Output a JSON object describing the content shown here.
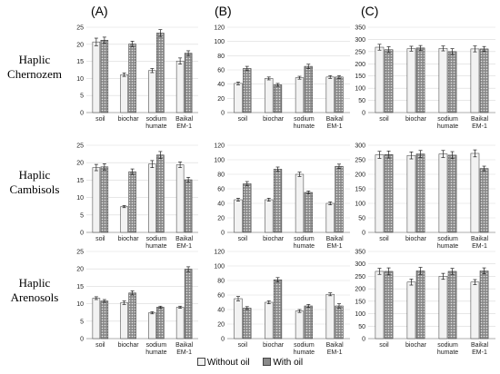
{
  "column_labels": [
    "(A)",
    "(B)",
    "(C)"
  ],
  "row_labels": [
    [
      "Haplic",
      "Chernozem"
    ],
    [
      "Haplic",
      "Cambisols"
    ],
    [
      "Haplic",
      "Arenosols"
    ]
  ],
  "legend": {
    "without_oil": "Without oil",
    "with_oil": "With oil"
  },
  "colors": {
    "without_oil_fill": "#f2f2f2",
    "with_oil_fill": "#8a8a8a",
    "bar_stroke": "#333333",
    "axis": "#999999"
  },
  "chart_data": [
    {
      "type": "bar",
      "row": 0,
      "col": 0,
      "title": "",
      "ylim": [
        0,
        25
      ],
      "yticks": [
        0,
        5,
        10,
        15,
        20,
        25
      ],
      "categories": [
        "soil",
        "biochar",
        "sodium humate",
        "Baikal EM-1"
      ],
      "series": [
        {
          "name": "Without oil",
          "values": [
            20.7,
            11.1,
            12.3,
            15.1
          ],
          "errors": [
            1.1,
            0.5,
            0.6,
            0.9
          ]
        },
        {
          "name": "With oil",
          "values": [
            21.2,
            20.1,
            23.3,
            17.4
          ],
          "errors": [
            0.9,
            0.8,
            1.0,
            0.7
          ]
        }
      ]
    },
    {
      "type": "bar",
      "row": 0,
      "col": 1,
      "title": "",
      "ylim": [
        0,
        120
      ],
      "yticks": [
        0,
        20,
        40,
        60,
        80,
        100,
        120
      ],
      "categories": [
        "soil",
        "biochar",
        "sodium humate",
        "Baikal EM-1"
      ],
      "series": [
        {
          "name": "Without oil",
          "values": [
            41,
            48,
            49,
            50
          ],
          "errors": [
            2,
            2,
            2,
            2
          ]
        },
        {
          "name": "With oil",
          "values": [
            62,
            39,
            65,
            50
          ],
          "errors": [
            3,
            2,
            3,
            2
          ]
        }
      ]
    },
    {
      "type": "bar",
      "row": 0,
      "col": 2,
      "title": "",
      "ylim": [
        0,
        350
      ],
      "yticks": [
        0,
        50,
        100,
        150,
        200,
        250,
        300,
        350
      ],
      "categories": [
        "soil",
        "biochar",
        "sodium humate",
        "Baikal EM-1"
      ],
      "series": [
        {
          "name": "Without oil",
          "values": [
            268,
            262,
            263,
            261
          ],
          "errors": [
            12,
            10,
            10,
            12
          ]
        },
        {
          "name": "With oil",
          "values": [
            258,
            265,
            250,
            261
          ],
          "errors": [
            12,
            10,
            12,
            10
          ]
        }
      ]
    },
    {
      "type": "bar",
      "row": 1,
      "col": 0,
      "title": "",
      "ylim": [
        0,
        25
      ],
      "yticks": [
        0,
        5,
        10,
        15,
        20,
        25
      ],
      "categories": [
        "soil",
        "biochar",
        "sodium humate",
        "Baikal EM-1"
      ],
      "series": [
        {
          "name": "Without oil",
          "values": [
            18.6,
            7.4,
            19.6,
            19.4
          ],
          "errors": [
            0.9,
            0.3,
            1.0,
            0.8
          ]
        },
        {
          "name": "With oil",
          "values": [
            18.8,
            17.4,
            22.2,
            15.1
          ],
          "errors": [
            0.9,
            0.8,
            1.0,
            0.7
          ]
        }
      ]
    },
    {
      "type": "bar",
      "row": 1,
      "col": 1,
      "title": "",
      "ylim": [
        0,
        120
      ],
      "yticks": [
        0,
        20,
        40,
        60,
        80,
        100,
        120
      ],
      "categories": [
        "soil",
        "biochar",
        "sodium humate",
        "Baikal EM-1"
      ],
      "series": [
        {
          "name": "Without oil",
          "values": [
            45,
            45,
            80,
            40
          ],
          "errors": [
            2,
            2,
            3,
            2
          ]
        },
        {
          "name": "With oil",
          "values": [
            67,
            87,
            55,
            91
          ],
          "errors": [
            3,
            3,
            2,
            3
          ]
        }
      ]
    },
    {
      "type": "bar",
      "row": 1,
      "col": 2,
      "title": "",
      "ylim": [
        0,
        300
      ],
      "yticks": [
        0,
        50,
        100,
        150,
        200,
        250,
        300
      ],
      "categories": [
        "soil",
        "biochar",
        "sodium humate",
        "Baikal EM-1"
      ],
      "series": [
        {
          "name": "Without oil",
          "values": [
            267,
            265,
            270,
            272
          ],
          "errors": [
            12,
            12,
            12,
            12
          ]
        },
        {
          "name": "With oil",
          "values": [
            268,
            270,
            266,
            220
          ],
          "errors": [
            12,
            12,
            12,
            8
          ]
        }
      ]
    },
    {
      "type": "bar",
      "row": 2,
      "col": 0,
      "title": "",
      "ylim": [
        0,
        25
      ],
      "yticks": [
        0,
        5,
        10,
        15,
        20,
        25
      ],
      "categories": [
        "soil",
        "biochar",
        "sodium humate",
        "Baikal EM-1"
      ],
      "series": [
        {
          "name": "Without oil",
          "values": [
            11.6,
            10.3,
            7.4,
            9.0
          ],
          "errors": [
            0.4,
            0.5,
            0.3,
            0.3
          ]
        },
        {
          "name": "With oil",
          "values": [
            10.8,
            13.1,
            9.0,
            19.9
          ],
          "errors": [
            0.4,
            0.6,
            0.3,
            0.7
          ]
        }
      ]
    },
    {
      "type": "bar",
      "row": 2,
      "col": 1,
      "title": "",
      "ylim": [
        0,
        120
      ],
      "yticks": [
        0,
        20,
        40,
        60,
        80,
        100,
        120
      ],
      "categories": [
        "soil",
        "biochar",
        "sodium humate",
        "Baikal EM-1"
      ],
      "series": [
        {
          "name": "Without oil",
          "values": [
            55,
            50,
            38,
            61
          ],
          "errors": [
            3,
            2,
            2,
            2
          ]
        },
        {
          "name": "With oil",
          "values": [
            42,
            81,
            45,
            45
          ],
          "errors": [
            2,
            3,
            2,
            3
          ]
        }
      ]
    },
    {
      "type": "bar",
      "row": 2,
      "col": 2,
      "title": "",
      "ylim": [
        0,
        350
      ],
      "yticks": [
        0,
        50,
        100,
        150,
        200,
        250,
        300,
        350
      ],
      "categories": [
        "soil",
        "biochar",
        "sodium humate",
        "Baikal EM-1"
      ],
      "series": [
        {
          "name": "Without oil",
          "values": [
            270,
            227,
            250,
            227
          ],
          "errors": [
            12,
            12,
            12,
            10
          ]
        },
        {
          "name": "With oil",
          "values": [
            270,
            272,
            270,
            272
          ],
          "errors": [
            14,
            14,
            12,
            12
          ]
        }
      ]
    }
  ]
}
